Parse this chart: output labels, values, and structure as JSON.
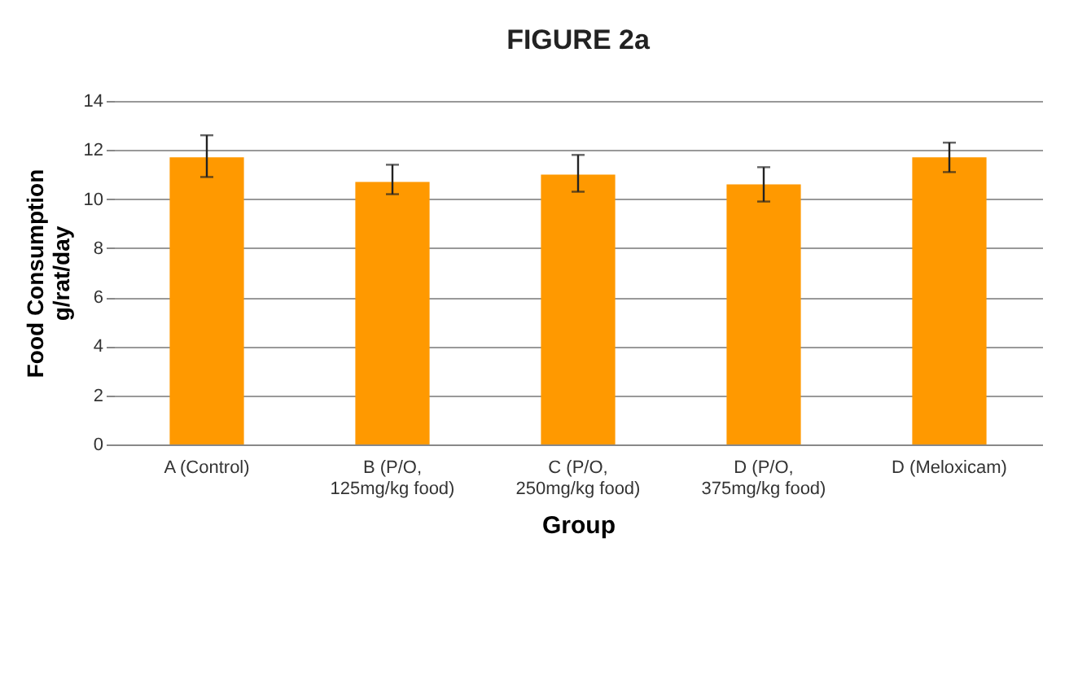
{
  "chart_data": {
    "type": "bar",
    "title": "FIGURE 2a",
    "xlabel": "Group",
    "ylabel": "Food Consumption\ng/rat/day",
    "categories": [
      "A (Control)",
      "B (P/O,\n125mg/kg food)",
      "C (P/O,\n250mg/kg food)",
      "D (P/O,\n375mg/kg food)",
      "D (Meloxicam)"
    ],
    "values": [
      11.7,
      10.7,
      11.0,
      10.6,
      11.7
    ],
    "errors": [
      [
        10.9,
        12.6
      ],
      [
        10.2,
        11.4
      ],
      [
        10.3,
        11.8
      ],
      [
        9.9,
        11.3
      ],
      [
        11.1,
        12.3
      ]
    ],
    "color": "#ff9900",
    "ylim": [
      0,
      14
    ],
    "yticks": [
      0,
      2,
      4,
      6,
      8,
      10,
      12,
      14
    ],
    "grid": "y"
  }
}
